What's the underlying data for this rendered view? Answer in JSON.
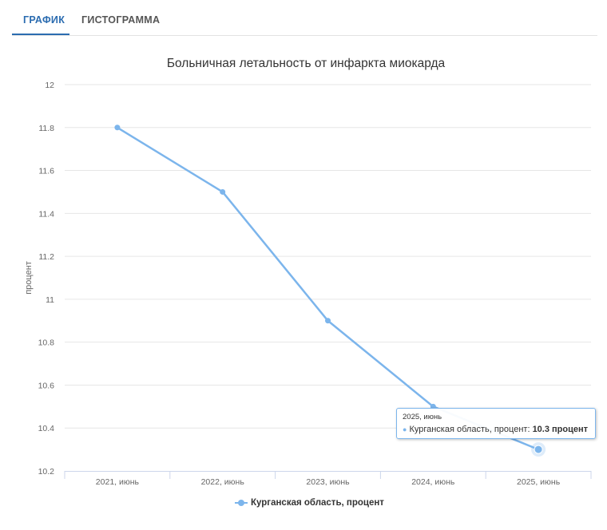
{
  "tabs": [
    {
      "label": "ГРАФИК",
      "active": true
    },
    {
      "label": "ГИСТОГРАММА",
      "active": false
    }
  ],
  "chart_data": {
    "type": "line",
    "title": "Больничная летальность от инфаркта миокарда",
    "ylabel": "процент",
    "xlabel": "",
    "categories": [
      "2021, июнь",
      "2022, июнь",
      "2023, июнь",
      "2024, июнь",
      "2025, июнь"
    ],
    "series": [
      {
        "name": "Курганская область, процент",
        "values": [
          11.8,
          11.5,
          10.9,
          10.5,
          10.3
        ],
        "color": "#7cb5ec"
      }
    ],
    "ylim": [
      10.2,
      12
    ],
    "yticks": [
      "10.2",
      "10.4",
      "10.6",
      "10.8",
      "11",
      "11.2",
      "11.4",
      "11.6",
      "11.8",
      "12"
    ],
    "grid": true,
    "legend": "bottom-center"
  },
  "tooltip": {
    "header": "2025, июнь",
    "label": "Курганская область, процент",
    "value": "10.3 процент"
  },
  "legend_label": "Курганская область, процент"
}
